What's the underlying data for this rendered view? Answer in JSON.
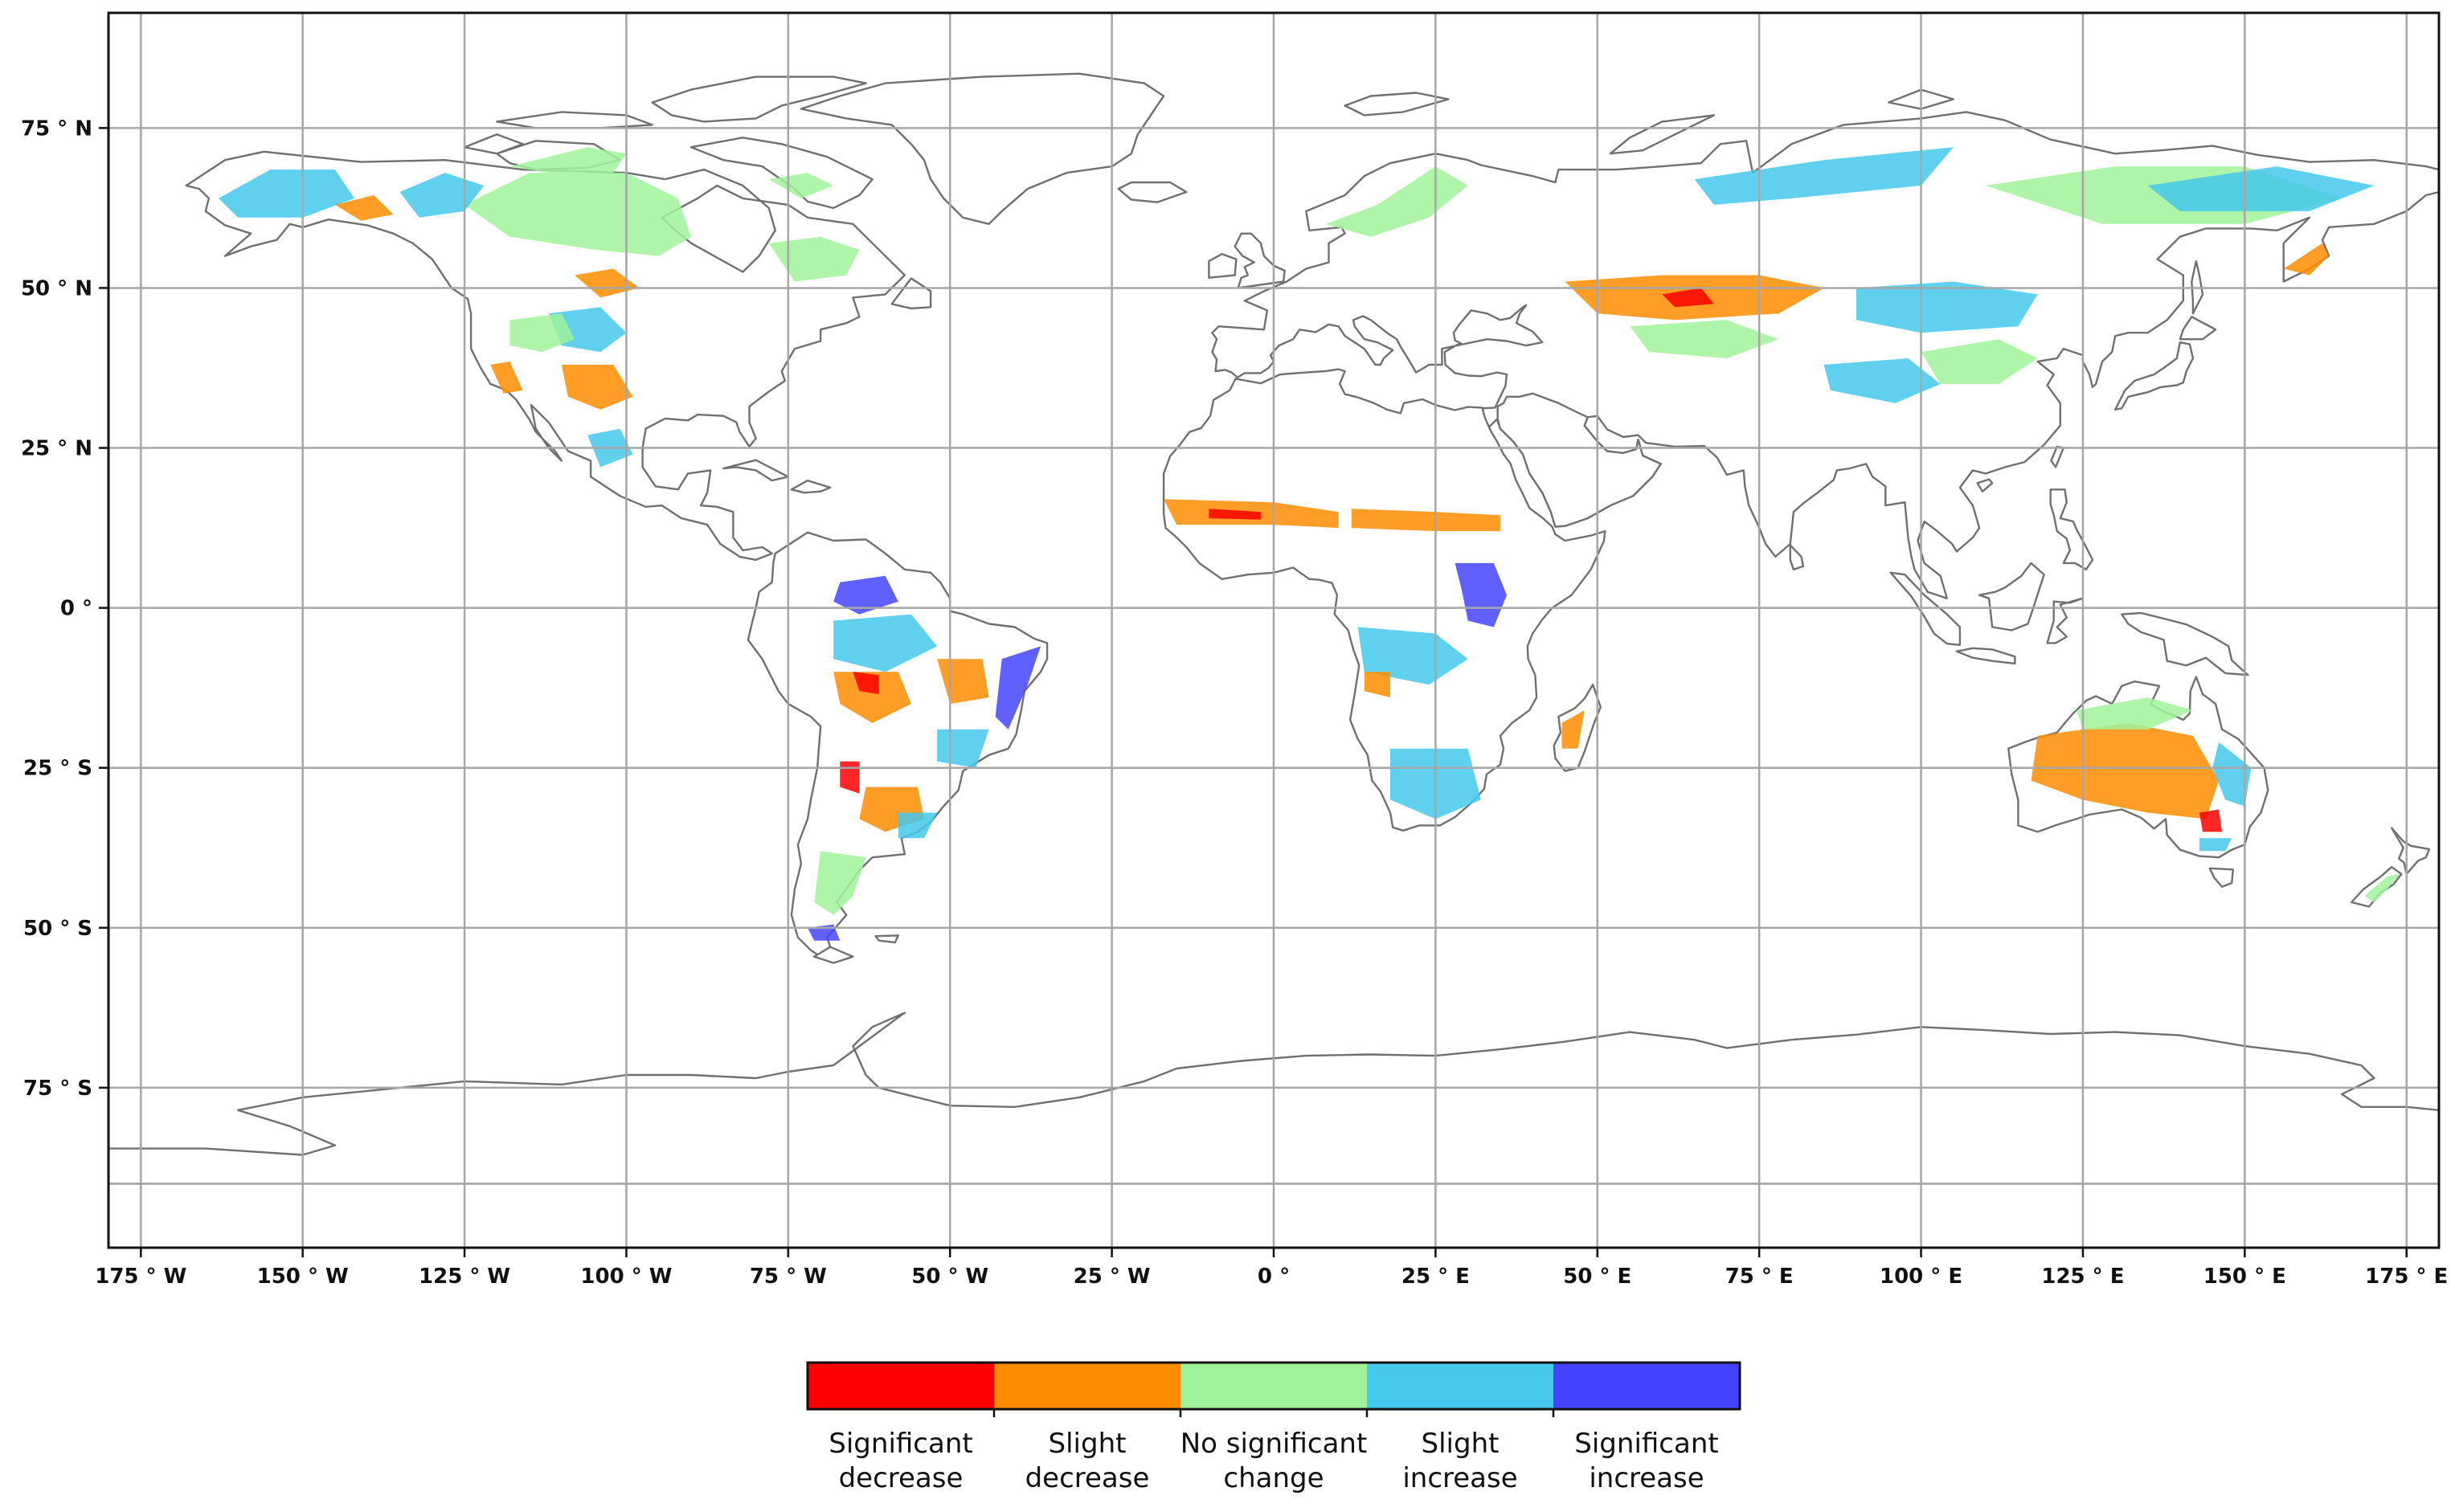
{
  "map": {
    "projection": "equirectangular",
    "longitude_range": [
      -180,
      180
    ],
    "latitude_range": [
      -100,
      93
    ],
    "grid": true,
    "grid_color": "#a6a6a6",
    "coastline_color": "#707070",
    "x_ticks": [
      {
        "value": -175,
        "label": "175 ° W"
      },
      {
        "value": -150,
        "label": "150 ° W"
      },
      {
        "value": -125,
        "label": "125 ° W"
      },
      {
        "value": -100,
        "label": "100 ° W"
      },
      {
        "value": -75,
        "label": "75 ° W"
      },
      {
        "value": -50,
        "label": "50 ° W"
      },
      {
        "value": -25,
        "label": "25 ° W"
      },
      {
        "value": 0,
        "label": "0 °"
      },
      {
        "value": 25,
        "label": "25 ° E"
      },
      {
        "value": 50,
        "label": "50 ° E"
      },
      {
        "value": 75,
        "label": "75 ° E"
      },
      {
        "value": 100,
        "label": "100 ° E"
      },
      {
        "value": 125,
        "label": "125 ° E"
      },
      {
        "value": 150,
        "label": "150 ° E"
      },
      {
        "value": 175,
        "label": "175 ° E"
      }
    ],
    "y_ticks": [
      {
        "value": 75,
        "label": "75 ° N"
      },
      {
        "value": 50,
        "label": "50 ° N"
      },
      {
        "value": 25,
        "label": "25 ° N"
      },
      {
        "value": 0,
        "label": "0 °"
      },
      {
        "value": -25,
        "label": "25 ° S"
      },
      {
        "value": -50,
        "label": "50 ° S"
      },
      {
        "value": -75,
        "label": "75 ° S"
      }
    ]
  },
  "legend": {
    "classes": [
      {
        "id": "sig-dec",
        "line1": "Significant",
        "line2": "decrease",
        "color": "#ff0000"
      },
      {
        "id": "slight-dec",
        "line1": "Slight",
        "line2": "decrease",
        "color": "#ff8c00"
      },
      {
        "id": "no-change",
        "line1": "No significant",
        "line2": "change",
        "color": "#a0f29a"
      },
      {
        "id": "slight-inc",
        "line1": "Slight",
        "line2": "increase",
        "color": "#44c8ec"
      },
      {
        "id": "sig-inc",
        "line1": "Significant",
        "line2": "increase",
        "color": "#4444ff"
      }
    ]
  }
}
